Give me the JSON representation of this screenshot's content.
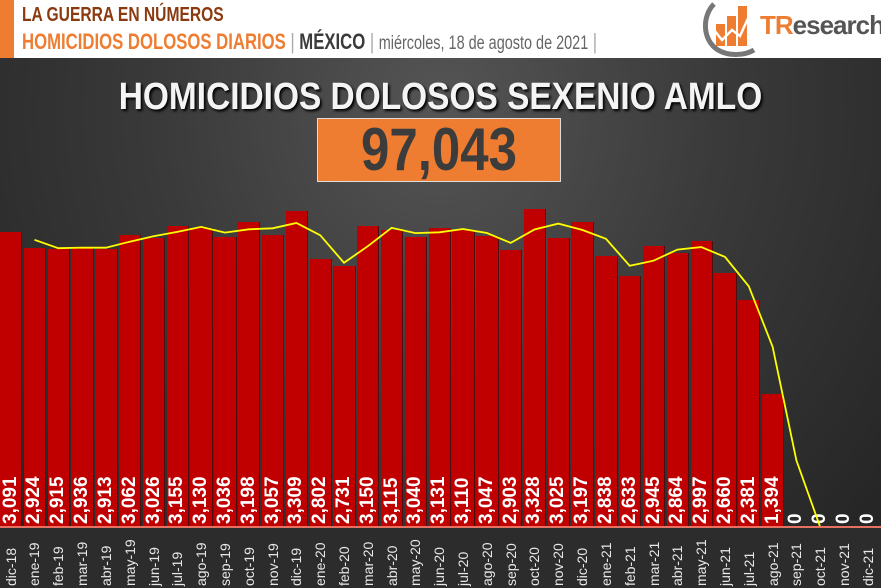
{
  "header": {
    "line1": "LA GUERRA EN NÚMEROS",
    "line2_title": "HOMICIDIOS DOLOSOS DIARIOS",
    "separator": "|",
    "country": "MÉXICO",
    "date": "miércoles, 18 de agosto de 2021",
    "date_separator": "|",
    "logo": {
      "brand_prefix": "TR",
      "brand_rest": "esearch",
      "icon": "bar-chart-growth-icon"
    },
    "colors": {
      "orange": "#ee7d31",
      "brown": "#8b3a0f",
      "dark": "#3a3a3a"
    }
  },
  "main": {
    "title": "HOMICIDIOS DOLOSOS SEXENIO AMLO",
    "total": "97,043"
  },
  "chart_data": {
    "type": "bar",
    "title": "HOMICIDIOS DOLOSOS SEXENIO AMLO",
    "subtitle": "97,043",
    "xlabel": "",
    "ylabel": "",
    "grid": false,
    "legend": "none",
    "bar_color": "#c00000",
    "trend_color": "#ffff00",
    "trend": "moving average (2 periods)",
    "categories": [
      "dic-18",
      "ene-19",
      "feb-19",
      "mar-19",
      "abr-19",
      "may-19",
      "jun-19",
      "jul-19",
      "ago-19",
      "sep-19",
      "oct-19",
      "nov-19",
      "dic-19",
      "ene-20",
      "feb-20",
      "mar-20",
      "abr-20",
      "may-20",
      "jun-20",
      "jul-20",
      "ago-20",
      "sep-20",
      "oct-20",
      "nov-20",
      "dic-20",
      "ene-21",
      "feb-21",
      "mar-21",
      "abr-21",
      "may-21",
      "jun-21",
      "jul-21",
      "ago-21",
      "sep-21",
      "oct-21",
      "nov-21",
      "dic-21"
    ],
    "values": [
      3091,
      2924,
      2915,
      2936,
      2913,
      3062,
      3026,
      3155,
      3130,
      3036,
      3198,
      3057,
      3309,
      2802,
      2731,
      3150,
      3115,
      3040,
      3131,
      3110,
      3047,
      2903,
      3328,
      3025,
      3197,
      2838,
      2633,
      2945,
      2864,
      2997,
      2660,
      2381,
      1394,
      0,
      0,
      0,
      0
    ],
    "labels": [
      "3,091",
      "2,924",
      "2,915",
      "2,936",
      "2,913",
      "3,062",
      "3,026",
      "3,155",
      "3,130",
      "3,036",
      "3,198",
      "3,057",
      "3,309",
      "2,802",
      "2,731",
      "3,150",
      "3,115",
      "3,040",
      "3,131",
      "3,110",
      "3,047",
      "2,903",
      "3,328",
      "3,025",
      "3,197",
      "2,838",
      "2,633",
      "2,945",
      "2,864",
      "2,997",
      "2,660",
      "2,381",
      "1,394",
      "0",
      "0",
      "0",
      "0"
    ]
  }
}
